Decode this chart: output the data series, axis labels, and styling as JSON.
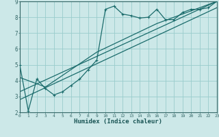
{
  "xlabel": "Humidex (Indice chaleur)",
  "bg_color": "#cce8e8",
  "grid_color": "#99cccc",
  "line_color": "#1a6b6b",
  "xmin": 0,
  "xmax": 23,
  "ymin": 2,
  "ymax": 9,
  "yticks": [
    2,
    3,
    4,
    5,
    6,
    7,
    8,
    9
  ],
  "xticks": [
    0,
    1,
    2,
    3,
    4,
    5,
    6,
    7,
    8,
    9,
    10,
    11,
    12,
    13,
    14,
    15,
    16,
    17,
    18,
    19,
    20,
    21,
    22,
    23
  ],
  "line1_x": [
    0,
    1,
    2,
    3,
    4,
    5,
    6,
    7,
    8,
    9,
    10,
    11,
    12,
    13,
    14,
    15,
    16,
    17,
    18,
    19,
    20,
    21,
    22,
    23
  ],
  "line1_y": [
    5.0,
    2.1,
    4.1,
    3.5,
    3.1,
    3.3,
    3.7,
    4.1,
    4.7,
    5.3,
    8.5,
    8.7,
    8.2,
    8.1,
    7.95,
    8.0,
    8.5,
    7.85,
    7.85,
    8.3,
    8.5,
    8.5,
    8.6,
    9.0
  ],
  "line2_x": [
    0,
    23
  ],
  "line2_y": [
    3.3,
    9.0
  ],
  "line3_x": [
    0,
    3,
    9,
    16,
    23
  ],
  "line3_y": [
    4.2,
    3.6,
    5.8,
    7.6,
    9.0
  ],
  "line4_x": [
    0,
    23
  ],
  "line4_y": [
    2.8,
    8.6
  ]
}
